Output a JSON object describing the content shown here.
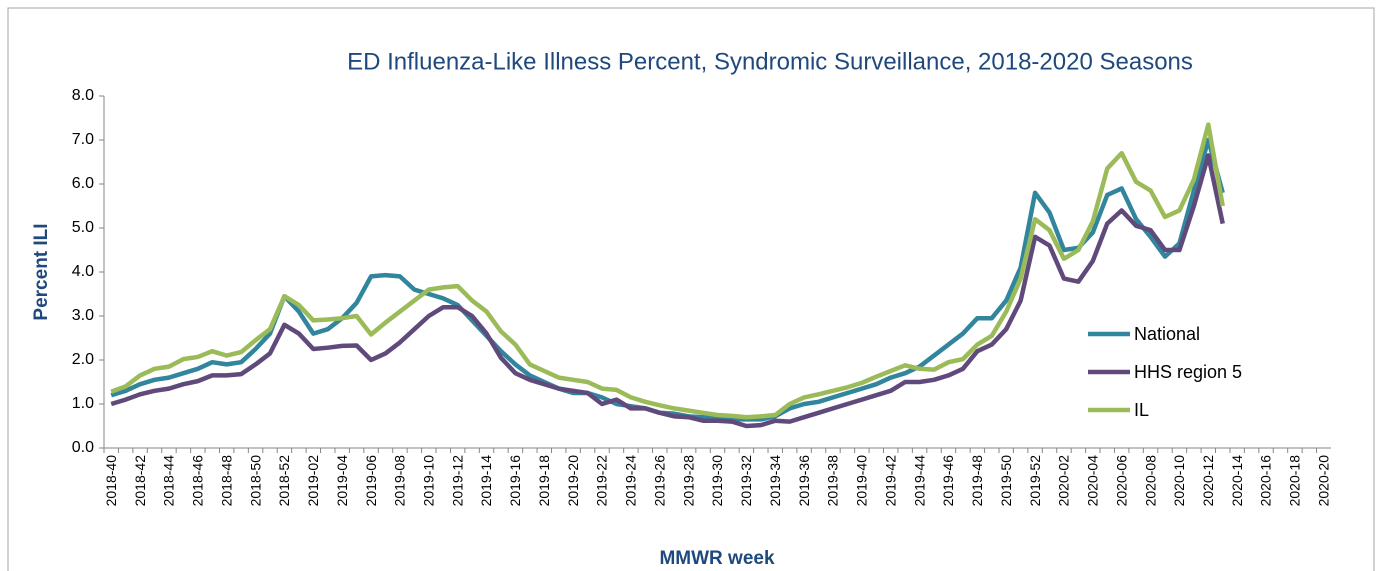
{
  "chart_data": {
    "type": "line",
    "title": "ED Influenza-Like Illness Percent, Syndromic Surveillance, 2018-2020 Seasons",
    "y_label": "Percent ILI",
    "x_label": "MMWR week",
    "categories": [
      "2018-40",
      null,
      "2018-42",
      null,
      "2018-44",
      null,
      "2018-46",
      null,
      "2018-48",
      null,
      "2018-50",
      null,
      "2018-52",
      null,
      "2019-02",
      null,
      "2019-04",
      null,
      "2019-06",
      null,
      "2019-08",
      null,
      "2019-10",
      null,
      "2019-12",
      null,
      "2019-14",
      null,
      "2019-16",
      null,
      "2019-18",
      null,
      "2019-20",
      null,
      "2019-22",
      null,
      "2019-24",
      null,
      "2019-26",
      null,
      "2019-28",
      null,
      "2019-30",
      null,
      "2019-32",
      null,
      "2019-34",
      null,
      "2019-36",
      null,
      "2019-38",
      null,
      "2019-40",
      null,
      "2019-42",
      null,
      "2019-44",
      null,
      "2019-46",
      null,
      "2019-48",
      null,
      "2019-50",
      null,
      "2019-52",
      null,
      "2020-02",
      null,
      "2020-04",
      null,
      "2020-06",
      null,
      "2020-08",
      null,
      "2020-10",
      null,
      "2020-12",
      null,
      "2020-14",
      null,
      "2020-16",
      null,
      "2020-18",
      null,
      "2020-20"
    ],
    "series": [
      {
        "name": "National",
        "color": "#31859c",
        "values": [
          1.2,
          1.3,
          1.45,
          1.55,
          1.6,
          1.7,
          1.8,
          1.95,
          1.9,
          1.95,
          2.25,
          2.6,
          3.45,
          3.1,
          2.6,
          2.7,
          2.95,
          3.3,
          3.9,
          3.93,
          3.9,
          3.6,
          3.5,
          3.4,
          3.25,
          2.9,
          2.55,
          2.2,
          1.9,
          1.65,
          1.5,
          1.35,
          1.25,
          1.25,
          1.15,
          1.0,
          0.95,
          0.9,
          0.8,
          0.78,
          0.72,
          0.7,
          0.68,
          0.65,
          0.65,
          0.65,
          0.72,
          0.9,
          1.0,
          1.05,
          1.15,
          1.25,
          1.35,
          1.45,
          1.6,
          1.7,
          1.85,
          2.1,
          2.35,
          2.6,
          2.95,
          2.95,
          3.35,
          4.1,
          5.8,
          5.35,
          4.5,
          4.55,
          4.9,
          5.75,
          5.9,
          5.2,
          4.8,
          4.35,
          4.65,
          5.85,
          7.0,
          5.8,
          null,
          null,
          null,
          null,
          null,
          null,
          null
        ]
      },
      {
        "name": "HHS region 5",
        "color": "#604a7b",
        "values": [
          1.0,
          1.1,
          1.22,
          1.3,
          1.35,
          1.45,
          1.52,
          1.65,
          1.65,
          1.68,
          1.9,
          2.15,
          2.8,
          2.6,
          2.25,
          2.28,
          2.32,
          2.33,
          2.0,
          2.15,
          2.4,
          2.7,
          3.0,
          3.2,
          3.2,
          3.0,
          2.6,
          2.05,
          1.7,
          1.55,
          1.45,
          1.35,
          1.3,
          1.25,
          1.0,
          1.1,
          0.9,
          0.9,
          0.8,
          0.72,
          0.7,
          0.62,
          0.62,
          0.6,
          0.5,
          0.52,
          0.62,
          0.6,
          0.7,
          0.8,
          0.9,
          1.0,
          1.1,
          1.2,
          1.3,
          1.5,
          1.5,
          1.55,
          1.65,
          1.8,
          2.2,
          2.35,
          2.7,
          3.35,
          4.8,
          4.6,
          3.85,
          3.78,
          4.25,
          5.1,
          5.4,
          5.05,
          4.95,
          4.5,
          4.5,
          5.5,
          6.65,
          5.1,
          null,
          null,
          null,
          null,
          null,
          null,
          null
        ]
      },
      {
        "name": "IL",
        "color": "#9bbb59",
        "values": [
          1.28,
          1.4,
          1.65,
          1.8,
          1.85,
          2.02,
          2.07,
          2.2,
          2.1,
          2.18,
          2.45,
          2.7,
          3.45,
          3.25,
          2.9,
          2.92,
          2.95,
          3.0,
          2.58,
          2.85,
          3.1,
          3.35,
          3.6,
          3.65,
          3.68,
          3.35,
          3.1,
          2.65,
          2.35,
          1.9,
          1.75,
          1.6,
          1.55,
          1.5,
          1.35,
          1.32,
          1.15,
          1.05,
          0.97,
          0.9,
          0.85,
          0.8,
          0.75,
          0.73,
          0.7,
          0.72,
          0.75,
          1.0,
          1.15,
          1.22,
          1.3,
          1.38,
          1.48,
          1.62,
          1.75,
          1.88,
          1.8,
          1.78,
          1.95,
          2.02,
          2.35,
          2.55,
          3.1,
          3.85,
          5.2,
          4.95,
          4.3,
          4.5,
          5.15,
          6.35,
          6.7,
          6.05,
          5.85,
          5.25,
          5.4,
          6.1,
          7.35,
          5.5,
          null,
          null,
          null,
          null,
          null,
          null,
          null
        ]
      }
    ],
    "ylim": [
      0,
      8
    ],
    "yticks": [
      {
        "value": 0,
        "label": "0.0"
      },
      {
        "value": 1,
        "label": "1.0"
      },
      {
        "value": 2,
        "label": "2.0"
      },
      {
        "value": 3,
        "label": "3.0"
      },
      {
        "value": 4,
        "label": "4.0"
      },
      {
        "value": 5,
        "label": "5.0"
      },
      {
        "value": 6,
        "label": "6.0"
      },
      {
        "value": 7,
        "label": "7.0"
      },
      {
        "value": 8,
        "label": "8.0"
      }
    ],
    "grid": false,
    "legend": "right"
  }
}
